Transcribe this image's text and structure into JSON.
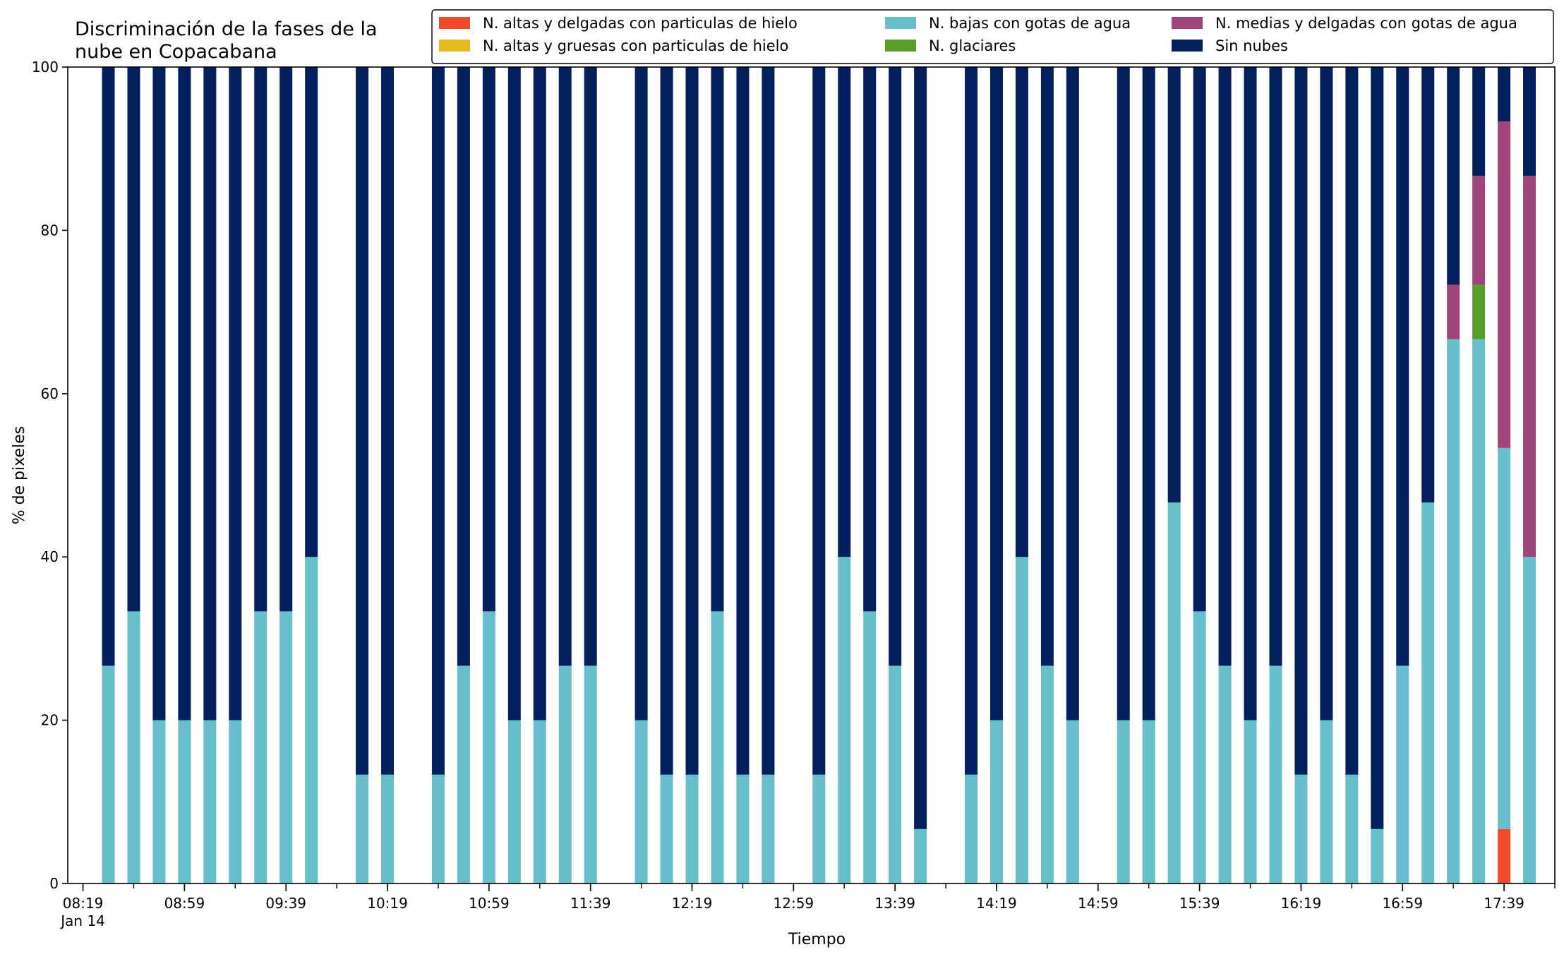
{
  "chart_data": {
    "type": "bar",
    "stacked": true,
    "title": "Discriminación de la fases de la\nnube en Copacabana",
    "xlabel": "Tiempo",
    "ylabel": "% de pixeles",
    "ylim": [
      0,
      100
    ],
    "yticks": [
      0,
      20,
      40,
      60,
      80,
      100
    ],
    "xlim": [
      "08:13",
      "17:59"
    ],
    "xtick_labels": [
      "08:19",
      "08:59",
      "09:39",
      "10:19",
      "10:59",
      "11:39",
      "12:19",
      "12:59",
      "13:39",
      "14:19",
      "14:59",
      "15:39",
      "16:19",
      "16:59",
      "17:39"
    ],
    "x_date_label": "Jan 14",
    "grid": false,
    "legend_position": "top-right",
    "legend_columns": 3,
    "x": [
      "08:29",
      "08:39",
      "08:49",
      "08:59",
      "09:09",
      "09:19",
      "09:29",
      "09:39",
      "09:49",
      "10:09",
      "10:19",
      "10:39",
      "10:49",
      "10:59",
      "11:09",
      "11:19",
      "11:29",
      "11:39",
      "11:59",
      "12:09",
      "12:19",
      "12:29",
      "12:39",
      "12:49",
      "13:09",
      "13:19",
      "13:29",
      "13:39",
      "13:49",
      "14:09",
      "14:19",
      "14:29",
      "14:39",
      "14:49",
      "15:09",
      "15:19",
      "15:29",
      "15:39",
      "15:49",
      "15:59",
      "16:09",
      "16:19",
      "16:29",
      "16:39",
      "16:49",
      "16:59",
      "17:09",
      "17:19",
      "17:29",
      "17:39",
      "17:49"
    ],
    "series": [
      {
        "name": "N. altas y delgadas con particulas de hielo",
        "color": "#ee4b2b",
        "values": [
          0,
          0,
          0,
          0,
          0,
          0,
          0,
          0,
          0,
          0,
          0,
          0,
          0,
          0,
          0,
          0,
          0,
          0,
          0,
          0,
          0,
          0,
          0,
          0,
          0,
          0,
          0,
          0,
          0,
          0,
          0,
          0,
          0,
          0,
          0,
          0,
          0,
          0,
          0,
          0,
          0,
          0,
          0,
          0,
          0,
          0,
          0,
          0,
          0,
          6.67,
          0
        ]
      },
      {
        "name": "N. altas y gruesas con particulas de hielo",
        "color": "#e6b91e",
        "values": [
          0,
          0,
          0,
          0,
          0,
          0,
          0,
          0,
          0,
          0,
          0,
          0,
          0,
          0,
          0,
          0,
          0,
          0,
          0,
          0,
          0,
          0,
          0,
          0,
          0,
          0,
          0,
          0,
          0,
          0,
          0,
          0,
          0,
          0,
          0,
          0,
          0,
          0,
          0,
          0,
          0,
          0,
          0,
          0,
          0,
          0,
          0,
          0,
          0,
          0,
          0
        ]
      },
      {
        "name": "N. bajas con gotas de agua",
        "color": "#66bfca",
        "values": [
          26.67,
          33.33,
          20,
          20,
          20,
          20,
          33.33,
          33.33,
          40,
          13.33,
          13.33,
          13.33,
          26.67,
          33.33,
          20,
          20,
          26.67,
          26.67,
          20,
          13.33,
          13.33,
          33.33,
          13.33,
          13.33,
          13.33,
          40,
          33.33,
          26.67,
          6.67,
          13.33,
          20,
          40,
          26.67,
          20,
          20,
          20,
          46.67,
          33.33,
          26.67,
          20,
          26.67,
          13.33,
          20,
          13.33,
          6.67,
          26.67,
          46.67,
          66.67,
          66.67,
          46.67,
          40
        ]
      },
      {
        "name": "N. glaciares",
        "color": "#5a9e2b",
        "values": [
          0,
          0,
          0,
          0,
          0,
          0,
          0,
          0,
          0,
          0,
          0,
          0,
          0,
          0,
          0,
          0,
          0,
          0,
          0,
          0,
          0,
          0,
          0,
          0,
          0,
          0,
          0,
          0,
          0,
          0,
          0,
          0,
          0,
          0,
          0,
          0,
          0,
          0,
          0,
          0,
          0,
          0,
          0,
          0,
          0,
          0,
          0,
          0,
          6.67,
          0,
          0
        ]
      },
      {
        "name": "N. medias y delgadas con gotas de agua",
        "color": "#a0457a",
        "values": [
          0,
          0,
          0,
          0,
          0,
          0,
          0,
          0,
          0,
          0,
          0,
          0,
          0,
          0,
          0,
          0,
          0,
          0,
          0,
          0,
          0,
          0,
          0,
          0,
          0,
          0,
          0,
          0,
          0,
          0,
          0,
          0,
          0,
          0,
          0,
          0,
          0,
          0,
          0,
          0,
          0,
          0,
          0,
          0,
          0,
          0,
          0,
          6.67,
          13.33,
          40,
          46.67
        ]
      },
      {
        "name": "Sin nubes",
        "color": "#021f5e",
        "values": [
          73.33,
          66.67,
          80,
          80,
          80,
          80,
          66.67,
          66.67,
          60,
          86.67,
          86.67,
          86.67,
          73.33,
          66.67,
          80,
          80,
          73.33,
          73.33,
          80,
          86.67,
          86.67,
          66.67,
          86.67,
          86.67,
          86.67,
          60,
          66.67,
          73.33,
          93.33,
          86.67,
          80,
          60,
          73.33,
          80,
          80,
          80,
          53.33,
          66.67,
          73.33,
          80,
          73.33,
          86.67,
          80,
          86.67,
          93.33,
          73.33,
          53.33,
          26.67,
          13.33,
          6.67,
          13.33
        ]
      }
    ]
  }
}
